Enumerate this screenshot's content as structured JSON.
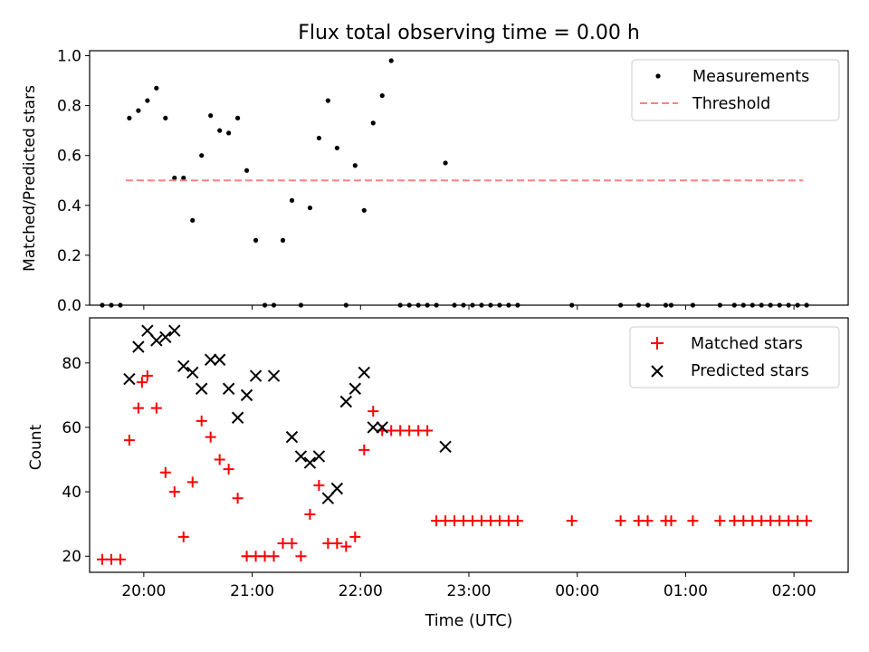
{
  "chart_data": [
    {
      "type": "scatter",
      "title": "Flux total observing time = 0.00 h",
      "xlabel": "",
      "ylabel": "Matched/Predicted stars",
      "x_is_time": true,
      "xlim": [
        "19:30",
        "02:30"
      ],
      "ylim": [
        0,
        1.02
      ],
      "yticks": [
        0.0,
        0.2,
        0.4,
        0.6,
        0.8,
        1.0
      ],
      "ytick_labels": [
        "0.0",
        "0.2",
        "0.4",
        "0.6",
        "0.8",
        "1.0"
      ],
      "legend_position": "top-right",
      "series": [
        {
          "name": "Measurements",
          "kind": "point",
          "color": "#000000",
          "x": [
            "19:37",
            "19:42",
            "19:47",
            "19:52",
            "19:57",
            "20:02",
            "20:07",
            "20:12",
            "20:17",
            "20:22",
            "20:27",
            "20:32",
            "20:37",
            "20:42",
            "20:47",
            "20:52",
            "20:57",
            "21:02",
            "21:07",
            "21:12",
            "21:17",
            "21:22",
            "21:27",
            "21:32",
            "21:37",
            "21:42",
            "21:47",
            "21:52",
            "21:57",
            "22:02",
            "22:07",
            "22:12",
            "22:17",
            "22:22",
            "22:27",
            "22:32",
            "22:37",
            "22:42",
            "22:47",
            "22:52",
            "22:57",
            "23:02",
            "23:07",
            "23:12",
            "23:17",
            "23:22",
            "23:27",
            "23:57",
            "00:24",
            "00:34",
            "00:39",
            "00:49",
            "00:52",
            "01:04",
            "01:19",
            "01:27",
            "01:32",
            "01:37",
            "01:42",
            "01:47",
            "01:52",
            "01:57",
            "02:02",
            "02:07"
          ],
          "y": [
            0,
            0,
            0,
            0.75,
            0.78,
            0.82,
            0.87,
            0.75,
            0.51,
            0.51,
            0.34,
            0.6,
            0.76,
            0.7,
            0.69,
            0.75,
            0.54,
            0.26,
            0,
            0,
            0.26,
            0.42,
            0,
            0.39,
            0.67,
            0.82,
            0.63,
            0,
            0.56,
            0.38,
            0.73,
            0.84,
            0.98,
            0,
            0,
            0,
            0,
            0,
            0.57,
            0,
            0,
            0,
            0,
            0,
            0,
            0,
            0,
            0,
            0,
            0,
            0,
            0,
            0,
            0,
            0,
            0,
            0,
            0,
            0,
            0,
            0,
            0,
            0,
            0
          ]
        },
        {
          "name": "Threshold",
          "kind": "dashed-line",
          "color": "#ff8080",
          "x": [
            "19:50",
            "02:05"
          ],
          "y": [
            0.5,
            0.5
          ]
        }
      ]
    },
    {
      "type": "scatter",
      "title": "",
      "xlabel": "Time (UTC)",
      "ylabel": "Count",
      "x_is_time": true,
      "xlim": [
        "19:30",
        "02:30"
      ],
      "ylim": [
        15,
        94
      ],
      "yticks": [
        20,
        40,
        60,
        80
      ],
      "ytick_labels": [
        "20",
        "40",
        "60",
        "80"
      ],
      "xticks": [
        "20:00",
        "21:00",
        "22:00",
        "23:00",
        "00:00",
        "01:00",
        "02:00"
      ],
      "legend_position": "top-right",
      "series": [
        {
          "name": "Matched stars",
          "kind": "plus",
          "color": "#ff0000",
          "x": [
            "19:37",
            "19:42",
            "19:47",
            "19:52",
            "19:57",
            "19:59",
            "20:02",
            "20:07",
            "20:12",
            "20:17",
            "20:22",
            "20:27",
            "20:32",
            "20:37",
            "20:42",
            "20:47",
            "20:52",
            "20:57",
            "21:02",
            "21:07",
            "21:12",
            "21:17",
            "21:22",
            "21:27",
            "21:32",
            "21:37",
            "21:42",
            "21:47",
            "21:52",
            "21:57",
            "22:02",
            "22:07",
            "22:12",
            "22:17",
            "22:22",
            "22:27",
            "22:32",
            "22:37",
            "22:42",
            "22:47",
            "22:52",
            "22:57",
            "23:02",
            "23:07",
            "23:12",
            "23:17",
            "23:22",
            "23:27",
            "23:57",
            "00:24",
            "00:34",
            "00:39",
            "00:49",
            "00:52",
            "01:04",
            "01:19",
            "01:27",
            "01:32",
            "01:37",
            "01:42",
            "01:47",
            "01:52",
            "01:57",
            "02:02",
            "02:07"
          ],
          "y": [
            19,
            19,
            19,
            56,
            66,
            74,
            76,
            66,
            46,
            40,
            26,
            43,
            62,
            57,
            50,
            47,
            38,
            20,
            20,
            20,
            20,
            24,
            24,
            20,
            33,
            42,
            24,
            24,
            23,
            26,
            53,
            65,
            59,
            59,
            59,
            59,
            59,
            59,
            31,
            31,
            31,
            31,
            31,
            31,
            31,
            31,
            31,
            31,
            31,
            31,
            31,
            31,
            31,
            31,
            31,
            31,
            31,
            31,
            31,
            31,
            31,
            31,
            31,
            31,
            31
          ]
        },
        {
          "name": "Predicted stars",
          "kind": "x",
          "color": "#000000",
          "x": [
            "19:52",
            "19:57",
            "20:02",
            "20:07",
            "20:12",
            "20:17",
            "20:22",
            "20:27",
            "20:32",
            "20:37",
            "20:42",
            "20:47",
            "20:52",
            "20:57",
            "21:02",
            "21:12",
            "21:22",
            "21:27",
            "21:32",
            "21:37",
            "21:42",
            "21:47",
            "21:52",
            "21:57",
            "22:02",
            "22:07",
            "22:12",
            "22:47"
          ],
          "y": [
            75,
            85,
            90,
            87,
            88,
            90,
            79,
            77,
            72,
            81,
            81,
            72,
            63,
            70,
            76,
            76,
            57,
            51,
            49,
            51,
            38,
            41,
            68,
            72,
            77,
            60,
            60,
            54
          ]
        }
      ]
    }
  ]
}
